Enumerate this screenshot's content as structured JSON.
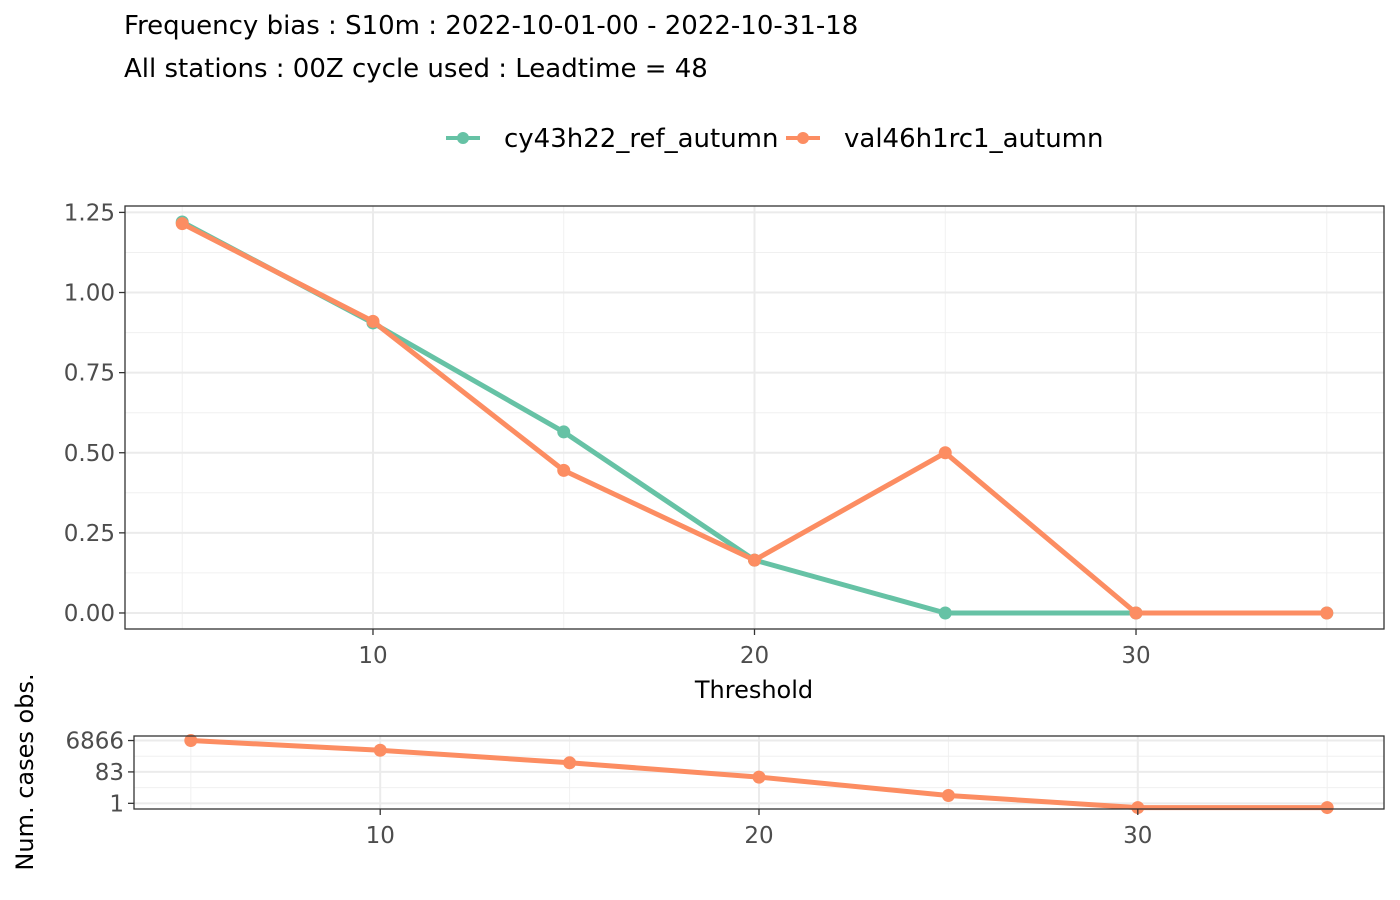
{
  "title_line1": "Frequency bias : S10m : 2022-10-01-00 - 2022-10-31-18",
  "title_line2": "All stations : 00Z cycle used : Leadtime = 48",
  "chart_data": [
    {
      "type": "line",
      "xlabel": "Threshold",
      "ylabel": "",
      "x": [
        5,
        10,
        15,
        20,
        25,
        30,
        35
      ],
      "xlim": [
        3.5,
        36.5
      ],
      "ylim": [
        -0.05,
        1.27
      ],
      "xticks": [
        10,
        20,
        30
      ],
      "yticks": [
        0,
        0.25,
        0.5,
        0.75,
        1.0,
        1.25
      ],
      "ytick_labels": [
        "0.00",
        "0.25",
        "0.50",
        "0.75",
        "1.00",
        "1.25"
      ],
      "grid": true,
      "legend_position": "top",
      "series": [
        {
          "name": "cy43h22_ref_autumn",
          "color": "#66c2a5",
          "values": [
            1.22,
            0.905,
            0.565,
            0.165,
            0.0,
            0.0,
            0.0
          ]
        },
        {
          "name": "val46h1rc1_autumn",
          "color": "#fc8d62",
          "values": [
            1.215,
            0.91,
            0.445,
            0.165,
            0.5,
            0.0,
            0.0
          ]
        }
      ]
    },
    {
      "type": "line",
      "xlabel": "",
      "ylabel": "Num. cases obs.",
      "scale": "log",
      "x": [
        5,
        10,
        15,
        20,
        25,
        30,
        35
      ],
      "xlim": [
        3.5,
        36.5
      ],
      "ylim": [
        0.45,
        13000
      ],
      "xticks": [
        10,
        20,
        30
      ],
      "yticks": [
        1,
        83,
        6866
      ],
      "ytick_labels": [
        "1",
        "83",
        "6866"
      ],
      "grid": true,
      "series": [
        {
          "name": "val46h1rc1_autumn",
          "color": "#fc8d62",
          "values": [
            6866,
            1750,
            300,
            40,
            3,
            0.55,
            0.55
          ]
        }
      ]
    }
  ]
}
